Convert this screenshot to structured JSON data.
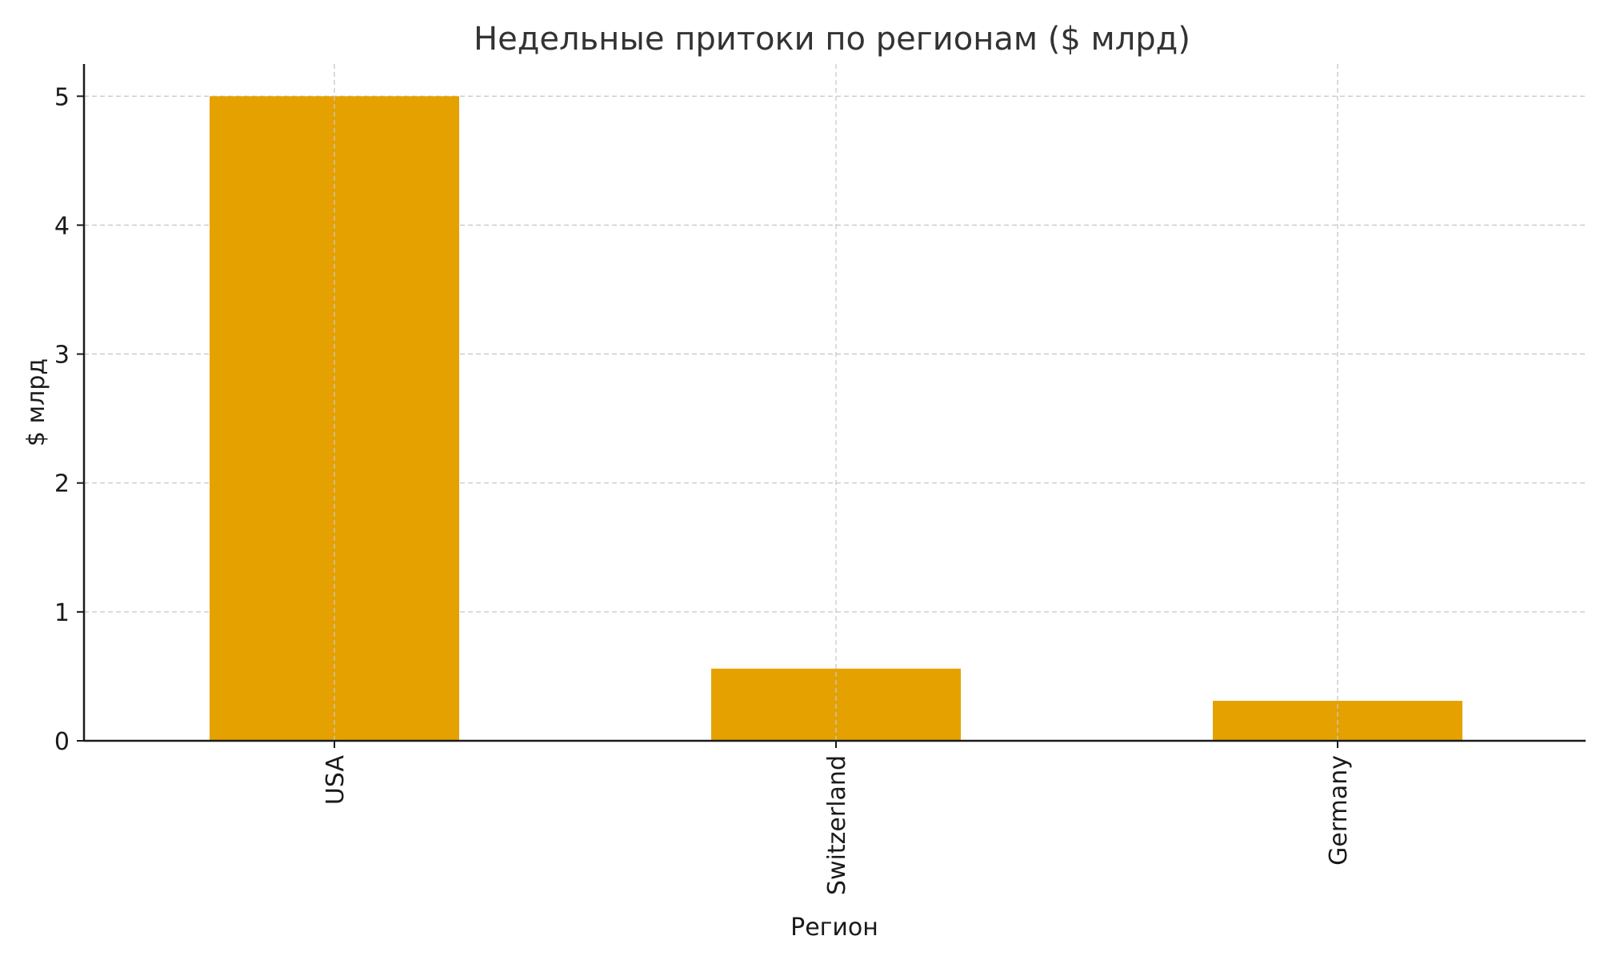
{
  "chart_data": {
    "type": "bar",
    "title": "Недельные притоки по регионам ($ млрд)",
    "xlabel": "Регион",
    "ylabel": "$ млрд",
    "categories": [
      "USA",
      "Switzerland",
      "Germany"
    ],
    "values": [
      5.0,
      0.56,
      0.31
    ],
    "ylim": [
      0,
      5.25
    ],
    "yticks": [
      0,
      1,
      2,
      3,
      4,
      5
    ],
    "grid": true,
    "bar_color": "#E5A100"
  }
}
